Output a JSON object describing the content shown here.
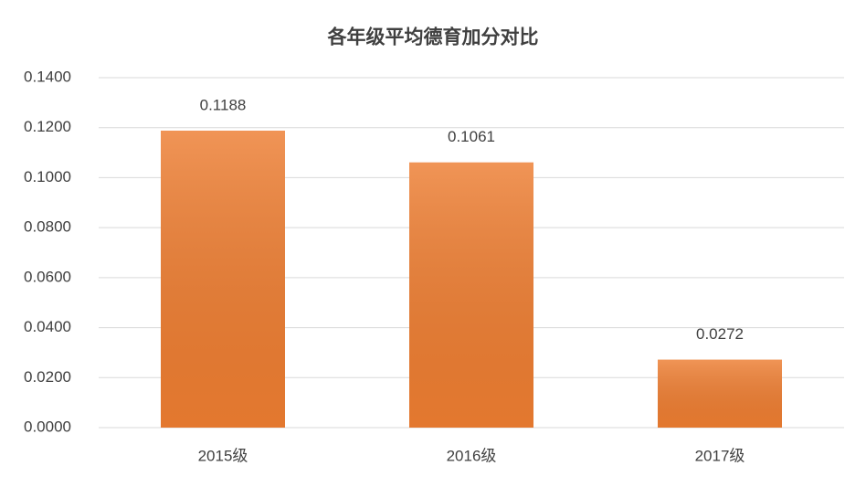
{
  "chart_data": {
    "type": "bar",
    "title": "各年级平均德育加分对比",
    "categories": [
      "2015级",
      "2016级",
      "2017级"
    ],
    "values": [
      0.1188,
      0.1061,
      0.0272
    ],
    "color": "#ed7d31",
    "ylim": [
      0,
      0.14
    ],
    "yticks": [
      {
        "value": 0,
        "label": "0.0000"
      },
      {
        "value": 0.02,
        "label": "0.0200"
      },
      {
        "value": 0.04,
        "label": "0.0400"
      },
      {
        "value": 0.06,
        "label": "0.0600"
      },
      {
        "value": 0.08,
        "label": "0.0800"
      },
      {
        "value": 0.1,
        "label": "0.1000"
      },
      {
        "value": 0.12,
        "label": "0.1200"
      },
      {
        "value": 0.14,
        "label": "0.1400"
      }
    ],
    "grid": true
  }
}
